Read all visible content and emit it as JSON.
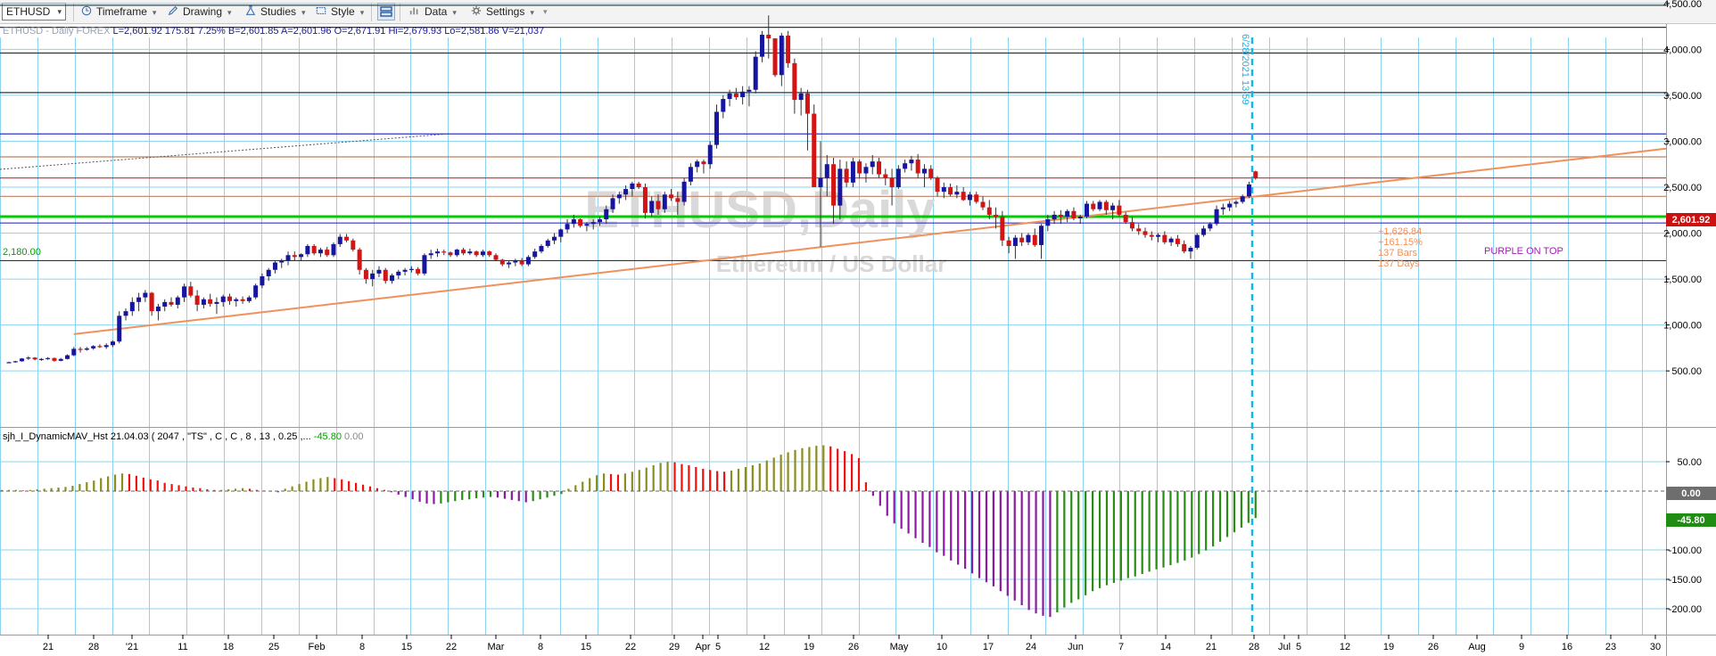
{
  "toolbar": {
    "symbol": "ETHUSD",
    "timeframe": "Timeframe",
    "drawing": "Drawing",
    "studies": "Studies",
    "style": "Style",
    "data": "Data",
    "settings": "Settings"
  },
  "info": {
    "symbol_period": "ETHUSD - Daily",
    "exchange": "FOREX",
    "last": "L=2,601.92",
    "change": "175.81",
    "change_pct": "7.25%",
    "bid": "B=2,601.85",
    "ask": "A=2,601.96",
    "open": "O=2,671.91",
    "high": "Hi=2,679.93",
    "low": "Lo=2,581.86",
    "volume": "V=21,037"
  },
  "watermark": {
    "title": "ETHUSD,Daily",
    "subtitle": "Ethereum / US Dollar"
  },
  "indicator": {
    "label": "sjh_I_DynamicMAV_Hst 21.04.03 ( 2047 , \"TS\" , C , C , 8 , 13 , 0.25 ,...",
    "value1": "-45.80",
    "value2": "0.00"
  },
  "annotations": {
    "left_level": "2,180.00",
    "vertical_date": "6/28/2021 13:59",
    "stats": [
      "+1,626.84",
      "+161.15%",
      "137 Bars",
      "137 Days"
    ],
    "purple_note": "PURPLE ON TOP",
    "price_tag": "2,601.92",
    "ind_zero_tag": "0.00",
    "ind_value_tag": "-45.80"
  },
  "chart_data": {
    "type": "candlestick",
    "instrument": "ETHUSD - Daily",
    "price_axis": {
      "min": 0,
      "max": 4700,
      "ticks": [
        "4,500.00",
        "4,000.00",
        "3,500.00",
        "3,000.00",
        "2,500.00",
        "2,000.00",
        "1,500.00",
        "1,000.00",
        "500.00"
      ]
    },
    "indicator_axis": {
      "ticks": [
        "50.00",
        "-100.00",
        "-150.00",
        "-200.00"
      ]
    },
    "x_tick_labels": [
      "21",
      "28",
      "'21",
      "11",
      "18",
      "25",
      "Feb",
      "8",
      "15",
      "22",
      "Mar",
      "8",
      "15",
      "22",
      "29",
      "Apr",
      "5",
      "12",
      "19",
      "26",
      "May",
      "10",
      "17",
      "24",
      "Jun",
      "7",
      "14",
      "21",
      "28",
      "Jul",
      "5",
      "12",
      "19",
      "26",
      "Aug",
      "9",
      "16",
      "23",
      "30"
    ],
    "candles_ohlc": [
      [
        590,
        600,
        585,
        595
      ],
      [
        595,
        610,
        590,
        605
      ],
      [
        605,
        640,
        600,
        635
      ],
      [
        635,
        660,
        620,
        645
      ],
      [
        645,
        650,
        615,
        625
      ],
      [
        625,
        640,
        610,
        630
      ],
      [
        630,
        650,
        620,
        640
      ],
      [
        640,
        645,
        600,
        610
      ],
      [
        610,
        640,
        605,
        630
      ],
      [
        630,
        680,
        625,
        670
      ],
      [
        670,
        760,
        660,
        740
      ],
      [
        740,
        760,
        700,
        730
      ],
      [
        730,
        760,
        720,
        745
      ],
      [
        745,
        780,
        730,
        770
      ],
      [
        770,
        790,
        750,
        760
      ],
      [
        760,
        800,
        740,
        780
      ],
      [
        780,
        830,
        760,
        820
      ],
      [
        820,
        1150,
        800,
        1100
      ],
      [
        1100,
        1180,
        1050,
        1150
      ],
      [
        1150,
        1300,
        1100,
        1250
      ],
      [
        1250,
        1350,
        1150,
        1300
      ],
      [
        1300,
        1380,
        1250,
        1350
      ],
      [
        1350,
        1360,
        1100,
        1150
      ],
      [
        1150,
        1230,
        1050,
        1200
      ],
      [
        1200,
        1280,
        1150,
        1250
      ],
      [
        1250,
        1300,
        1200,
        1220
      ],
      [
        1220,
        1320,
        1180,
        1300
      ],
      [
        1300,
        1450,
        1250,
        1420
      ],
      [
        1420,
        1470,
        1300,
        1320
      ],
      [
        1320,
        1380,
        1150,
        1220
      ],
      [
        1220,
        1300,
        1180,
        1280
      ],
      [
        1280,
        1340,
        1200,
        1230
      ],
      [
        1230,
        1300,
        1120,
        1250
      ],
      [
        1250,
        1330,
        1200,
        1310
      ],
      [
        1310,
        1340,
        1220,
        1260
      ],
      [
        1260,
        1300,
        1200,
        1280
      ],
      [
        1280,
        1310,
        1230,
        1260
      ],
      [
        1260,
        1320,
        1240,
        1300
      ],
      [
        1300,
        1450,
        1280,
        1430
      ],
      [
        1430,
        1560,
        1400,
        1530
      ],
      [
        1530,
        1620,
        1480,
        1600
      ],
      [
        1600,
        1700,
        1560,
        1680
      ],
      [
        1680,
        1720,
        1620,
        1700
      ],
      [
        1700,
        1800,
        1650,
        1760
      ],
      [
        1760,
        1800,
        1700,
        1740
      ],
      [
        1740,
        1780,
        1700,
        1770
      ],
      [
        1770,
        1880,
        1740,
        1860
      ],
      [
        1860,
        1880,
        1760,
        1780
      ],
      [
        1780,
        1840,
        1740,
        1820
      ],
      [
        1820,
        1850,
        1740,
        1760
      ],
      [
        1760,
        1900,
        1740,
        1880
      ],
      [
        1880,
        1990,
        1850,
        1960
      ],
      [
        1960,
        1990,
        1900,
        1920
      ],
      [
        1920,
        1940,
        1800,
        1820
      ],
      [
        1820,
        1840,
        1550,
        1600
      ],
      [
        1600,
        1620,
        1450,
        1500
      ],
      [
        1500,
        1600,
        1420,
        1560
      ],
      [
        1560,
        1640,
        1520,
        1600
      ],
      [
        1600,
        1620,
        1450,
        1480
      ],
      [
        1480,
        1560,
        1450,
        1540
      ],
      [
        1540,
        1600,
        1500,
        1580
      ],
      [
        1580,
        1620,
        1540,
        1600
      ],
      [
        1600,
        1640,
        1570,
        1610
      ],
      [
        1610,
        1630,
        1540,
        1560
      ],
      [
        1560,
        1780,
        1540,
        1760
      ],
      [
        1760,
        1820,
        1720,
        1780
      ],
      [
        1780,
        1830,
        1740,
        1800
      ],
      [
        1800,
        1820,
        1760,
        1790
      ],
      [
        1790,
        1800,
        1740,
        1760
      ],
      [
        1760,
        1830,
        1740,
        1820
      ],
      [
        1820,
        1840,
        1760,
        1780
      ],
      [
        1780,
        1830,
        1760,
        1800
      ],
      [
        1800,
        1810,
        1740,
        1760
      ],
      [
        1760,
        1820,
        1740,
        1800
      ],
      [
        1800,
        1810,
        1740,
        1760
      ],
      [
        1760,
        1780,
        1700,
        1710
      ],
      [
        1710,
        1720,
        1640,
        1660
      ],
      [
        1660,
        1700,
        1620,
        1680
      ],
      [
        1680,
        1720,
        1640,
        1700
      ],
      [
        1700,
        1730,
        1640,
        1660
      ],
      [
        1660,
        1760,
        1640,
        1740
      ],
      [
        1740,
        1830,
        1720,
        1800
      ],
      [
        1800,
        1880,
        1780,
        1860
      ],
      [
        1860,
        1940,
        1840,
        1920
      ],
      [
        1920,
        2000,
        1880,
        1960
      ],
      [
        1960,
        2050,
        1900,
        2040
      ],
      [
        2040,
        2150,
        2000,
        2100
      ],
      [
        2100,
        2200,
        2060,
        2150
      ],
      [
        2150,
        2160,
        2060,
        2080
      ],
      [
        2080,
        2120,
        2020,
        2100
      ],
      [
        2100,
        2150,
        2040,
        2120
      ],
      [
        2120,
        2180,
        2080,
        2150
      ],
      [
        2150,
        2300,
        2100,
        2260
      ],
      [
        2260,
        2420,
        2220,
        2380
      ],
      [
        2380,
        2450,
        2320,
        2420
      ],
      [
        2420,
        2520,
        2360,
        2480
      ],
      [
        2480,
        2560,
        2400,
        2540
      ],
      [
        2540,
        2560,
        2480,
        2500
      ],
      [
        2500,
        2540,
        2160,
        2220
      ],
      [
        2220,
        2400,
        2180,
        2350
      ],
      [
        2350,
        2420,
        2200,
        2260
      ],
      [
        2260,
        2450,
        2220,
        2420
      ],
      [
        2420,
        2480,
        2350,
        2380
      ],
      [
        2380,
        2450,
        2200,
        2340
      ],
      [
        2340,
        2600,
        2300,
        2560
      ],
      [
        2560,
        2760,
        2520,
        2720
      ],
      [
        2720,
        2800,
        2660,
        2780
      ],
      [
        2780,
        2800,
        2650,
        2750
      ],
      [
        2750,
        3000,
        2700,
        2960
      ],
      [
        2960,
        3400,
        2920,
        3320
      ],
      [
        3320,
        3500,
        3250,
        3460
      ],
      [
        3460,
        3560,
        3380,
        3520
      ],
      [
        3520,
        3580,
        3450,
        3480
      ],
      [
        3480,
        3600,
        3400,
        3540
      ],
      [
        3540,
        3600,
        3380,
        3560
      ],
      [
        3560,
        3980,
        3520,
        3920
      ],
      [
        3920,
        4200,
        3860,
        4160
      ],
      [
        4160,
        4370,
        3900,
        4120
      ],
      [
        4120,
        4100,
        3700,
        3720
      ],
      [
        3720,
        4180,
        3600,
        4150
      ],
      [
        4150,
        4200,
        3800,
        3850
      ],
      [
        3850,
        3900,
        3300,
        3450
      ],
      [
        3450,
        3580,
        3280,
        3520
      ],
      [
        3520,
        3560,
        2900,
        3300
      ],
      [
        3300,
        3400,
        2500,
        2500
      ],
      [
        2500,
        3000,
        1850,
        2600
      ],
      [
        2600,
        2850,
        2400,
        2750
      ],
      [
        2750,
        2820,
        2100,
        2300
      ],
      [
        2300,
        2800,
        2150,
        2700
      ],
      [
        2700,
        2780,
        2500,
        2550
      ],
      [
        2550,
        2820,
        2500,
        2780
      ],
      [
        2780,
        2800,
        2600,
        2650
      ],
      [
        2650,
        2760,
        2550,
        2720
      ],
      [
        2720,
        2850,
        2640,
        2780
      ],
      [
        2780,
        2820,
        2600,
        2640
      ],
      [
        2640,
        2700,
        2520,
        2600
      ],
      [
        2600,
        2700,
        2300,
        2500
      ],
      [
        2500,
        2740,
        2480,
        2700
      ],
      [
        2700,
        2800,
        2660,
        2760
      ],
      [
        2760,
        2840,
        2680,
        2800
      ],
      [
        2800,
        2860,
        2600,
        2650
      ],
      [
        2650,
        2750,
        2500,
        2700
      ],
      [
        2700,
        2740,
        2580,
        2600
      ],
      [
        2600,
        2620,
        2400,
        2450
      ],
      [
        2450,
        2550,
        2380,
        2500
      ],
      [
        2500,
        2540,
        2400,
        2420
      ],
      [
        2420,
        2520,
        2380,
        2450
      ],
      [
        2450,
        2500,
        2350,
        2360
      ],
      [
        2360,
        2450,
        2300,
        2420
      ],
      [
        2420,
        2450,
        2320,
        2340
      ],
      [
        2340,
        2400,
        2250,
        2280
      ],
      [
        2280,
        2360,
        2150,
        2200
      ],
      [
        2200,
        2280,
        2050,
        2180
      ],
      [
        2180,
        2240,
        1860,
        1920
      ],
      [
        1920,
        1960,
        1780,
        1860
      ],
      [
        1860,
        1980,
        1720,
        1950
      ],
      [
        1950,
        2000,
        1860,
        1900
      ],
      [
        1900,
        2000,
        1870,
        1980
      ],
      [
        1980,
        2050,
        1850,
        1870
      ],
      [
        1870,
        2100,
        1720,
        2080
      ],
      [
        2080,
        2200,
        2020,
        2150
      ],
      [
        2150,
        2240,
        2100,
        2200
      ],
      [
        2200,
        2250,
        2100,
        2180
      ],
      [
        2180,
        2260,
        2120,
        2240
      ],
      [
        2240,
        2280,
        2140,
        2160
      ],
      [
        2160,
        2200,
        2100,
        2180
      ],
      [
        2180,
        2350,
        2160,
        2320
      ],
      [
        2320,
        2350,
        2240,
        2260
      ],
      [
        2260,
        2360,
        2240,
        2340
      ],
      [
        2340,
        2360,
        2200,
        2250
      ],
      [
        2250,
        2330,
        2150,
        2300
      ],
      [
        2300,
        2360,
        2180,
        2200
      ],
      [
        2200,
        2230,
        2100,
        2120
      ],
      [
        2120,
        2180,
        2020,
        2050
      ],
      [
        2050,
        2100,
        1980,
        2020
      ],
      [
        2020,
        2060,
        1950,
        1980
      ],
      [
        1980,
        2020,
        1920,
        1960
      ],
      [
        1960,
        2000,
        1900,
        1980
      ],
      [
        1980,
        2020,
        1880,
        1900
      ],
      [
        1900,
        1960,
        1860,
        1940
      ],
      [
        1940,
        1980,
        1850,
        1880
      ],
      [
        1880,
        1920,
        1780,
        1800
      ],
      [
        1800,
        1860,
        1720,
        1840
      ],
      [
        1840,
        2000,
        1820,
        1980
      ],
      [
        1980,
        2080,
        1960,
        2050
      ],
      [
        2050,
        2120,
        2020,
        2100
      ],
      [
        2100,
        2300,
        2080,
        2260
      ],
      [
        2260,
        2320,
        2200,
        2280
      ],
      [
        2280,
        2350,
        2240,
        2320
      ],
      [
        2320,
        2360,
        2280,
        2340
      ],
      [
        2340,
        2420,
        2320,
        2400
      ],
      [
        2400,
        2560,
        2380,
        2530
      ],
      [
        2671.91,
        2679.93,
        2581.86,
        2601.92
      ]
    ],
    "indicator_values": [
      2,
      2,
      2,
      1,
      2,
      3,
      4,
      5,
      6,
      7,
      9,
      12,
      15,
      18,
      22,
      25,
      28,
      30,
      29,
      26,
      23,
      20,
      18,
      14,
      12,
      10,
      8,
      6,
      5,
      3,
      2,
      2,
      3,
      4,
      5,
      4,
      2,
      1,
      -1,
      -2,
      4,
      8,
      12,
      16,
      20,
      22,
      24,
      22,
      20,
      17,
      14,
      11,
      8,
      5,
      2,
      -2,
      -6,
      -10,
      -14,
      -18,
      -21,
      -22,
      -21,
      -19,
      -17,
      -15,
      -14,
      -12,
      -11,
      -10,
      -11,
      -13,
      -15,
      -17,
      -19,
      -17,
      -14,
      -11,
      -8,
      -5,
      4,
      10,
      16,
      22,
      27,
      30,
      29,
      28,
      30,
      33,
      36,
      40,
      44,
      48,
      50,
      49,
      46,
      44,
      41,
      38,
      36,
      34,
      33,
      35,
      38,
      41,
      44,
      47,
      52,
      57,
      62,
      66,
      70,
      73,
      75,
      77,
      78,
      76,
      72,
      68,
      63,
      56,
      15,
      -8,
      -25,
      -42,
      -55,
      -64,
      -72,
      -80,
      -88,
      -95,
      -104,
      -110,
      -118,
      -125,
      -132,
      -140,
      -148,
      -155,
      -162,
      -170,
      -178,
      -186,
      -194,
      -202,
      -208,
      -212,
      -214,
      -206,
      -198,
      -190,
      -184,
      -177,
      -170,
      -165,
      -160,
      -156,
      -152,
      -148,
      -145,
      -141,
      -137,
      -133,
      -130,
      -126,
      -122,
      -118,
      -113,
      -107,
      -101,
      -94,
      -86,
      -78,
      -70,
      -62,
      -54,
      -45.8
    ],
    "horizontal_levels": [
      4480,
      4240,
      3960,
      3530,
      3080,
      2830,
      2600,
      2400,
      2180,
      2110,
      1700
    ],
    "trendline": {
      "from": [
        10,
        900
      ],
      "to": [
        210,
        2920
      ]
    }
  },
  "colors": {
    "up_candle": "#1515a0",
    "down_candle": "#d21414",
    "grid": "#8dd3f0",
    "trendline": "#f0905a",
    "level_green": "#00cc00",
    "vline": "#19b4e6",
    "hist_olive": "#8c8c1e",
    "hist_red": "#ee1111",
    "hist_purple": "#8c1aa0",
    "hist_green": "#2a8c14",
    "price_tag": "#cc1111"
  }
}
